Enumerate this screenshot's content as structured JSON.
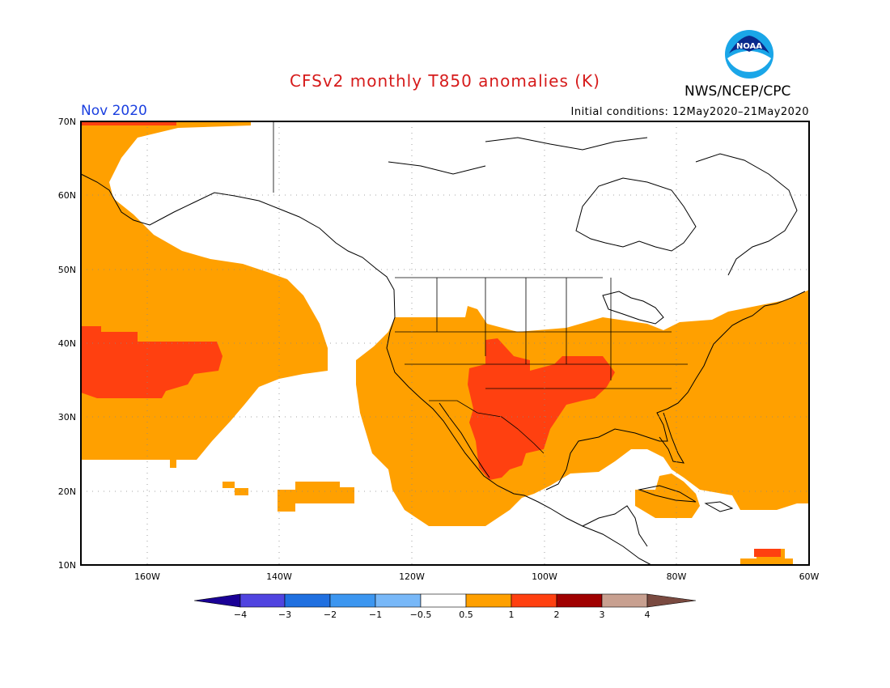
{
  "header": {
    "title": "CFSv2 monthly T850 anomalies (K)",
    "agency": "NWS/NCEP/CPC",
    "month": "Nov 2020",
    "initial_conditions": "Initial conditions: 12May2020–21May2020",
    "logo_text": "NOAA"
  },
  "map": {
    "projection": "lat-lon",
    "lon_range": [
      -170,
      -60
    ],
    "lat_range": [
      10,
      70
    ],
    "lat_ticks": [
      {
        "value": 70,
        "label": "70N"
      },
      {
        "value": 60,
        "label": "60N"
      },
      {
        "value": 50,
        "label": "50N"
      },
      {
        "value": 40,
        "label": "40N"
      },
      {
        "value": 30,
        "label": "30N"
      },
      {
        "value": 20,
        "label": "20N"
      },
      {
        "value": 10,
        "label": "10N"
      }
    ],
    "lon_ticks": [
      {
        "value": -160,
        "label": "160W"
      },
      {
        "value": -140,
        "label": "140W"
      },
      {
        "value": -120,
        "label": "120W"
      },
      {
        "value": -100,
        "label": "100W"
      },
      {
        "value": -80,
        "label": "80W"
      },
      {
        "value": -60,
        "label": "60W"
      }
    ],
    "grid": true,
    "colors": {
      "anomaly_0_5_to_1": "#ffa000",
      "anomaly_1_to_2": "#ff4010",
      "coastline": "#000000",
      "grid": "#888888"
    }
  },
  "colorbar": {
    "bounds": [
      "−4",
      "−3",
      "−2",
      "−1",
      "−0.5",
      "0.5",
      "1",
      "2",
      "3",
      "4"
    ],
    "colors": [
      "#1a0096",
      "#5044e0",
      "#2070e0",
      "#3c96f0",
      "#78b8f8",
      "#ffffff",
      "#ffa000",
      "#ff4010",
      "#a00000",
      "#c8a090",
      "#7a4a40"
    ]
  }
}
